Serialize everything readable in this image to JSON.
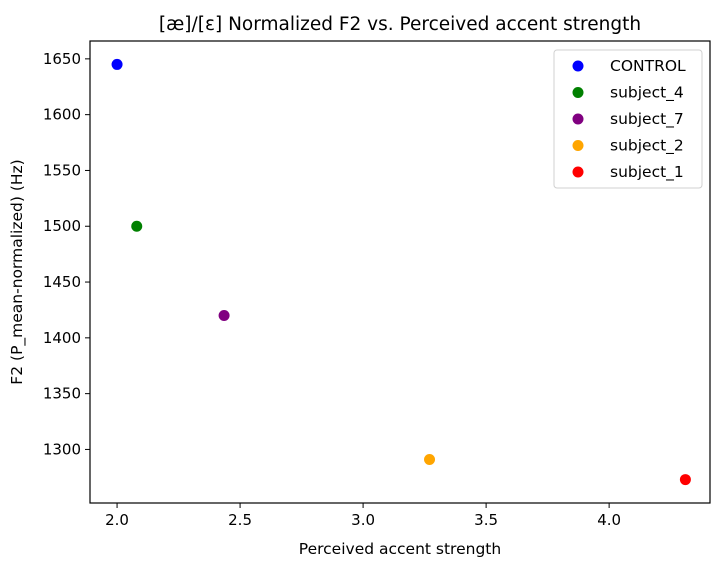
{
  "chart_data": {
    "type": "scatter",
    "title": "[æ]/[ɛ] Normalized F2 vs. Perceived accent strength",
    "xlabel": "Perceived accent strength",
    "ylabel": "F2 (P_mean-normalized) (Hz)",
    "xlim": [
      1.89,
      4.41
    ],
    "ylim": [
      1252,
      1666
    ],
    "xticks": [
      2.0,
      2.5,
      3.0,
      3.5,
      4.0
    ],
    "xtick_labels": [
      "2.0",
      "2.5",
      "3.0",
      "3.5",
      "4.0"
    ],
    "yticks": [
      1300,
      1350,
      1400,
      1450,
      1500,
      1550,
      1600,
      1650
    ],
    "ytick_labels": [
      "1300",
      "1350",
      "1400",
      "1450",
      "1500",
      "1550",
      "1600",
      "1650"
    ],
    "grid": false,
    "legend_position": "top-right",
    "series": [
      {
        "name": "CONTROL",
        "color": "#0000ff",
        "points": [
          {
            "x": 2.0,
            "y": 1645
          }
        ]
      },
      {
        "name": "subject_4",
        "color": "#008000",
        "points": [
          {
            "x": 2.08,
            "y": 1500
          }
        ]
      },
      {
        "name": "subject_7",
        "color": "#800080",
        "points": [
          {
            "x": 2.435,
            "y": 1420
          }
        ]
      },
      {
        "name": "subject_2",
        "color": "#ffa500",
        "points": [
          {
            "x": 3.27,
            "y": 1291
          }
        ]
      },
      {
        "name": "subject_1",
        "color": "#ff0000",
        "points": [
          {
            "x": 4.31,
            "y": 1273
          }
        ]
      }
    ]
  }
}
